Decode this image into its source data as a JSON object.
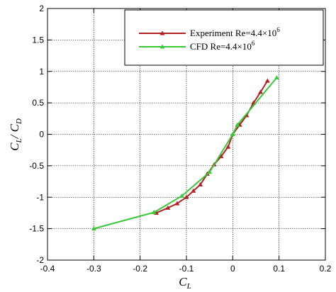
{
  "chart_data": {
    "type": "line",
    "xlabel": {
      "main": "C",
      "sub": "L"
    },
    "ylabel": {
      "num_main": "C",
      "num_sub": "L",
      "sep": "/ ",
      "den_main": "C",
      "den_sub": "D"
    },
    "xlim": [
      -0.4,
      0.2
    ],
    "ylim": [
      -2,
      2
    ],
    "x_ticks": [
      -0.4,
      -0.3,
      -0.2,
      -0.1,
      0,
      0.1,
      0.2
    ],
    "x_tick_labels": [
      "-0.4",
      "-0.3",
      "-0.2",
      "-0.1",
      "0",
      "0.1",
      "0.2"
    ],
    "y_ticks": [
      -2,
      -1.5,
      -1,
      -0.5,
      0,
      0.5,
      1,
      1.5,
      2
    ],
    "y_tick_labels": [
      "-2",
      "-1.5",
      "-1",
      "-0.5",
      "0",
      "0.5",
      "1",
      "1.5",
      "2"
    ],
    "grid": true,
    "legend_position": "top-right",
    "series": [
      {
        "name": "Experiment Re=4.4×10",
        "name_sup": "6",
        "color": "#b22222",
        "marker": "triangle",
        "x": [
          -0.165,
          -0.14,
          -0.12,
          -0.1,
          -0.085,
          -0.07,
          -0.055,
          -0.04,
          -0.025,
          -0.01,
          0.0,
          0.015,
          0.03,
          0.045,
          0.06,
          0.075
        ],
        "y": [
          -1.25,
          -1.17,
          -1.1,
          -1.0,
          -0.9,
          -0.8,
          -0.63,
          -0.48,
          -0.35,
          -0.2,
          0.0,
          0.15,
          0.3,
          0.5,
          0.67,
          0.85
        ]
      },
      {
        "name": "CFD Re=4.4×10",
        "name_sup": "6",
        "color": "#3cc83c",
        "marker": "triangle",
        "x": [
          -0.3,
          -0.17,
          -0.11,
          -0.05,
          0.0,
          0.01,
          0.095
        ],
        "y": [
          -1.5,
          -1.24,
          -0.98,
          -0.6,
          0.0,
          0.15,
          0.9
        ]
      }
    ]
  }
}
